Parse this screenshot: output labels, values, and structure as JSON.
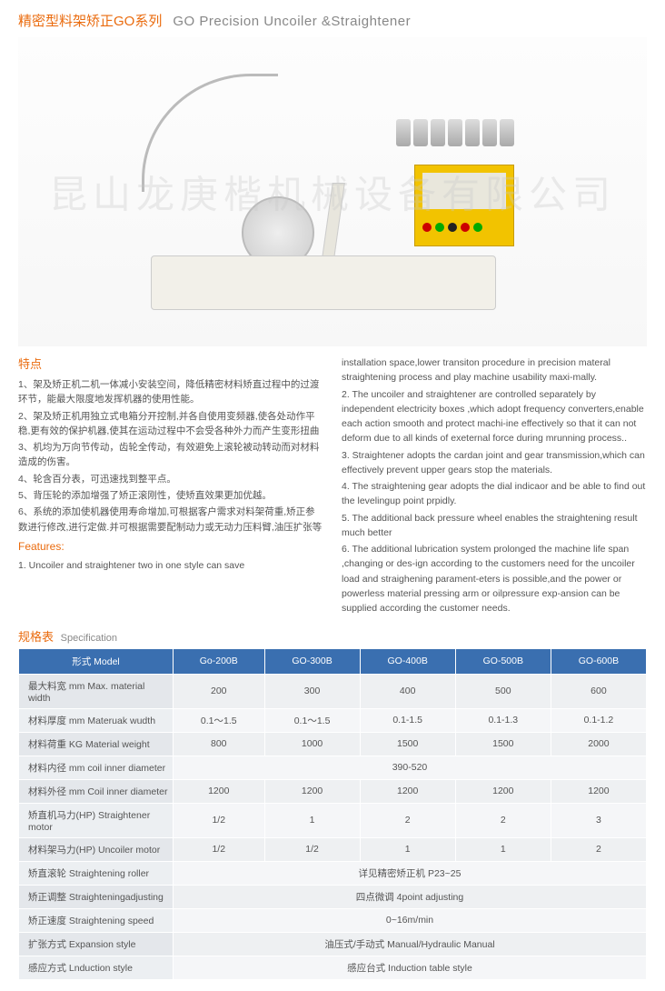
{
  "title": {
    "cn": "精密型料架矫正GO系列",
    "en": "GO Precision Uncoiler &Straightener"
  },
  "watermark": "昆山龙庚楷机械设备有限公司",
  "features": {
    "head_cn": "特点",
    "head_en": "Features:",
    "cn": [
      "1、架及矫正机二机一体减小安装空间，降低精密材料矫直过程中的过渡环节，能最大限度地发挥机器的使用性能。",
      "2、架及矫正机用独立式电箱分开控制,并各自使用变频器,使各处动作平稳,更有效的保护机器,使其在运动过程中不会受各种外力而产生变形扭曲",
      "3、机均为万向节传动，齿轮全传动，有效避免上滚轮被动转动而对材料造成的伤害。",
      "4、轮含百分表，可迅速找到整平点。",
      "5、背压轮的添加增强了矫正滚刚性，使矫直效果更加优越。",
      "6、系统的添加使机器使用寿命增加,可根据客户需求对料架荷重,矫正参数进行修改,进行定做.并可根据需要配制动力或无动力压料臂,油压扩张等"
    ],
    "en_lead": "1. Uncoiler and straightener two in one style can save",
    "en": [
      "installation space,lower transiton procedure in precision materal straightening process and play machine usability maxi-mally.",
      "2. The uncoiler and straightener are controlled separately by independent electricity boxes ,which adopt frequency converters,enable each action smooth and protect machi-ine effectively so that it can not deform due to all kinds of exeternal force during mrunning process..",
      "3. Straightener adopts the cardan joint and gear transmission,which can effectively prevent upper gears stop the materials.",
      "4. The straightening gear adopts the dial indicaor and be able to find out the levelingup point prpidly.",
      "5. The additional back pressure wheel enables the straightening result much better",
      "6. The additional lubrication system prolonged the machine life span ,changing or des-ign according to the customers need for the uncoiler load and straighening parament-eters is possible,and the power or powerless material pressing arm or oilpressure exp-ansion can be supplied according the customer needs."
    ]
  },
  "spec": {
    "title_cn": "规格表",
    "title_en": "Specification",
    "model_label": "形式   Model",
    "models": [
      "Go-200B",
      "GO-300B",
      "GO-400B",
      "GO-500B",
      "GO-600B"
    ],
    "rows": [
      {
        "label": "最大料宽 mm   Max. material width",
        "vals": [
          "200",
          "300",
          "400",
          "500",
          "600"
        ]
      },
      {
        "label": "材料厚度 mm   Materuak wudth",
        "vals": [
          "0.1～1.5",
          "0.1～1.5",
          "0.1-1.5",
          "0.1-1.3",
          "0.1-1.2"
        ]
      },
      {
        "label": "材料荷重 KG   Material weight",
        "vals": [
          "800",
          "1000",
          "1500",
          "1500",
          "2000"
        ]
      },
      {
        "label": "材料内径 mm   coil inner diameter",
        "span": "390-520"
      },
      {
        "label": "材料外径 mm   Coil inner diameter",
        "vals": [
          "1200",
          "1200",
          "1200",
          "1200",
          "1200"
        ]
      },
      {
        "label": "矫直机马力(HP)   Straightener motor",
        "vals": [
          "1/2",
          "1",
          "2",
          "2",
          "3"
        ]
      },
      {
        "label": "材料架马力(HP)   Uncoiler motor",
        "vals": [
          "1/2",
          "1/2",
          "1",
          "1",
          "2"
        ]
      },
      {
        "label": "矫直滚轮   Straightening roller",
        "span": "详见精密矫正机 P23~25"
      },
      {
        "label": "矫正调整   Straighteningadjusting",
        "span": "四点微调   4point adjusting"
      },
      {
        "label": "矫正速度   Straightening speed",
        "span": "0~16m/min"
      },
      {
        "label": "扩张方式   Expansion style",
        "span": "油压式/手动式   Manual/Hydraulic Manual"
      },
      {
        "label": "感应方式   Lnduction style",
        "span": "感应台式   Induction table style"
      }
    ]
  },
  "colors": {
    "accent": "#ea6b0e",
    "th_bg": "#3a6fb0",
    "td_bg": "#eef0f2"
  }
}
